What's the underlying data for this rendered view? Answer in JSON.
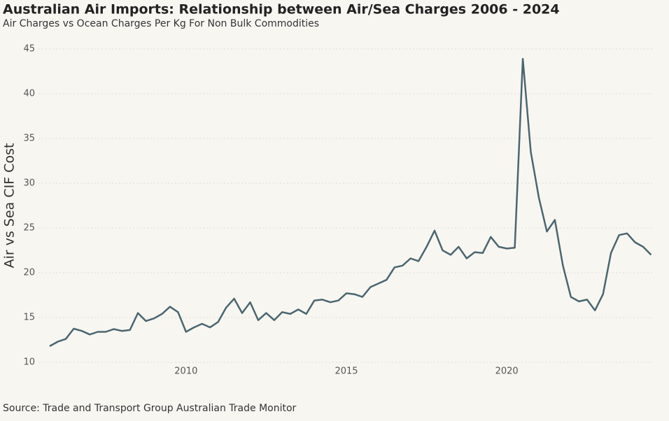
{
  "chart_data": {
    "type": "line",
    "title": "Australian Air Imports: Relationship between Air/Sea Charges 2006 - 2024",
    "subtitle": "Air Charges vs Ocean Charges Per Kg For Non Bulk Commodities",
    "y_label": "Air vs Sea CIF Cost",
    "source": "Source: Trade and Transport Group Australian Trade Monitor",
    "x": [
      2005.75,
      2006,
      2006.25,
      2006.5,
      2006.75,
      2007,
      2007.25,
      2007.5,
      2007.75,
      2008,
      2008.25,
      2008.5,
      2008.75,
      2009,
      2009.25,
      2009.5,
      2009.75,
      2010,
      2010.25,
      2010.5,
      2010.75,
      2011,
      2011.25,
      2011.5,
      2011.75,
      2012,
      2012.25,
      2012.5,
      2012.75,
      2013,
      2013.25,
      2013.5,
      2013.75,
      2014,
      2014.25,
      2014.5,
      2014.75,
      2015,
      2015.25,
      2015.5,
      2015.75,
      2016,
      2016.25,
      2016.5,
      2016.75,
      2017,
      2017.25,
      2017.5,
      2017.75,
      2018,
      2018.25,
      2018.5,
      2018.75,
      2019,
      2019.25,
      2019.5,
      2019.75,
      2020,
      2020.25,
      2020.5,
      2020.75,
      2021,
      2021.25,
      2021.5,
      2021.75,
      2022,
      2022.25,
      2022.5,
      2022.75,
      2023,
      2023.25,
      2023.5,
      2023.75,
      2024,
      2024.25,
      2024.5
    ],
    "values": [
      11.8,
      12.3,
      12.6,
      13.75,
      13.5,
      13.1,
      13.4,
      13.4,
      13.7,
      13.5,
      13.6,
      15.5,
      14.6,
      14.9,
      15.4,
      16.2,
      15.6,
      13.4,
      13.9,
      14.3,
      13.9,
      14.5,
      16.1,
      17.1,
      15.5,
      16.7,
      14.7,
      15.5,
      14.7,
      15.6,
      15.4,
      15.9,
      15.4,
      16.9,
      17.0,
      16.7,
      16.9,
      17.7,
      17.6,
      17.3,
      18.4,
      18.8,
      19.2,
      20.6,
      20.8,
      21.6,
      21.3,
      22.9,
      24.7,
      22.5,
      22.0,
      22.9,
      21.6,
      22.3,
      22.2,
      24.0,
      22.9,
      22.7,
      22.8,
      43.9,
      33.5,
      28.4,
      24.6,
      25.9,
      20.8,
      17.3,
      16.8,
      17.0,
      15.8,
      17.6,
      22.2,
      24.2,
      24.4,
      23.4,
      22.9,
      22.0
    ],
    "color": "#4a6670",
    "xlim": [
      2005.4,
      2024.6
    ],
    "xticks": [
      2010,
      2015,
      2020
    ],
    "ylim": [
      10,
      45
    ],
    "yticks": [
      10,
      15,
      20,
      25,
      30,
      35,
      40,
      45
    ],
    "grid": true
  }
}
